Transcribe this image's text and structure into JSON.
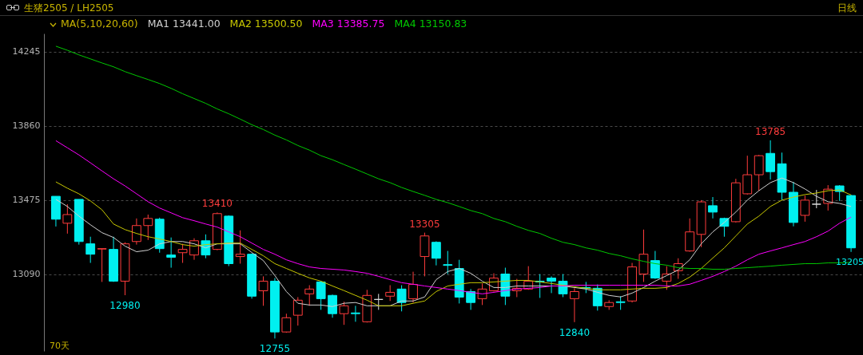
{
  "chart_data": {
    "type": "candlestick",
    "title": "生猪2505 / LH2505",
    "subtitle": "日线",
    "legend_title": "MA(5,10,20,60)",
    "legend": "top left",
    "grid": "y",
    "annotations": [
      {
        "text": "13410",
        "y": 13410
      },
      {
        "text": "12980",
        "y": 12980
      },
      {
        "text": "12755",
        "y": 12755
      },
      {
        "text": "13305",
        "y": 13305
      },
      {
        "text": "12840",
        "y": 12840
      },
      {
        "text": "13785",
        "y": 13785
      },
      {
        "text": "13205",
        "y": 13205
      },
      "70天"
    ],
    "ylim": [
      12690,
      14340
    ],
    "yticks": [
      13090,
      13475,
      13860,
      14245
    ],
    "categories": [
      null,
      null,
      null,
      null,
      null,
      null,
      null,
      null,
      null,
      null,
      null,
      null,
      null,
      null,
      null,
      null,
      null,
      null,
      null,
      null,
      null,
      null,
      null,
      null,
      null,
      null,
      null,
      null,
      null,
      null,
      null,
      null,
      null,
      null,
      null,
      null,
      null,
      null,
      null,
      null,
      null,
      null,
      null,
      null,
      null,
      null,
      null,
      null,
      null,
      null,
      null,
      null,
      null,
      null,
      null,
      null,
      null,
      null,
      null,
      null,
      null,
      null,
      null,
      null,
      null,
      null,
      null,
      null,
      null,
      null
    ],
    "ohlc": [
      [
        13494,
        13494,
        13337,
        13375
      ],
      [
        13354,
        13453,
        13300,
        13399
      ],
      [
        13478,
        13478,
        13243,
        13259
      ],
      [
        13247,
        13284,
        13148,
        13193
      ],
      [
        13220,
        13222,
        13049,
        13222
      ],
      [
        13218,
        13284,
        13049,
        13053
      ],
      [
        13053,
        13255,
        12980,
        13247
      ],
      [
        13259,
        13379,
        13243,
        13342
      ],
      [
        13342,
        13399,
        13267,
        13379
      ],
      [
        13375,
        13383,
        13201,
        13222
      ],
      [
        13189,
        13280,
        13123,
        13177
      ],
      [
        13201,
        13247,
        13148,
        13218
      ],
      [
        13189,
        13276,
        13164,
        13263
      ],
      [
        13263,
        13296,
        13172,
        13189
      ],
      [
        13218,
        13410,
        13214,
        13404
      ],
      [
        13391,
        13395,
        13131,
        13144
      ],
      [
        13181,
        13317,
        13144,
        13193
      ],
      [
        13193,
        13197,
        12962,
        12975
      ],
      [
        13003,
        13078,
        12925,
        13053
      ],
      [
        13053,
        13069,
        12755,
        12789
      ],
      [
        12789,
        12884,
        12785,
        12863
      ],
      [
        12876,
        12970,
        12822,
        12954
      ],
      [
        12987,
        13032,
        12925,
        13012
      ],
      [
        13049,
        13053,
        12904,
        12962
      ],
      [
        12979,
        12983,
        12863,
        12884
      ],
      [
        12884,
        12946,
        12826,
        12925
      ],
      [
        12888,
        12925,
        12842,
        12884
      ],
      [
        12842,
        13008,
        12838,
        12979
      ],
      [
        12958,
        12987,
        12904,
        12958
      ],
      [
        12975,
        13032,
        12950,
        12995
      ],
      [
        13012,
        13032,
        12896,
        12942
      ],
      [
        12962,
        13102,
        12942,
        13036
      ],
      [
        13181,
        13305,
        13078,
        13288
      ],
      [
        13255,
        13260,
        13135,
        13172
      ],
      [
        13139,
        13210,
        13090,
        13135
      ],
      [
        13119,
        13164,
        12937,
        12970
      ],
      [
        12999,
        13012,
        12904,
        12942
      ],
      [
        12962,
        13041,
        12929,
        13012
      ],
      [
        13003,
        13094,
        12999,
        13069
      ],
      [
        13090,
        13123,
        12929,
        12975
      ],
      [
        13003,
        13065,
        12970,
        13016
      ],
      [
        13012,
        13131,
        13008,
        13053
      ],
      [
        13053,
        13090,
        12966,
        13049
      ],
      [
        13069,
        13078,
        12991,
        13053
      ],
      [
        13053,
        13090,
        12970,
        12987
      ],
      [
        12962,
        13016,
        12840,
        12999
      ],
      [
        13020,
        13049,
        12991,
        13016
      ],
      [
        13016,
        13036,
        12900,
        12925
      ],
      [
        12921,
        12954,
        12904,
        12942
      ],
      [
        12946,
        12975,
        12904,
        12942
      ],
      [
        12950,
        13148,
        12942,
        13127
      ],
      [
        13090,
        13321,
        13049,
        13193
      ],
      [
        13160,
        13210,
        13065,
        13069
      ],
      [
        13053,
        13131,
        13008,
        13090
      ],
      [
        13107,
        13172,
        13065,
        13144
      ],
      [
        13210,
        13379,
        13206,
        13309
      ],
      [
        13296,
        13474,
        13230,
        13465
      ],
      [
        13445,
        13490,
        13379,
        13412
      ],
      [
        13379,
        13383,
        13284,
        13338
      ],
      [
        13362,
        13585,
        13358,
        13564
      ],
      [
        13507,
        13705,
        13503,
        13606
      ],
      [
        13606,
        13709,
        13523,
        13705
      ],
      [
        13717,
        13785,
        13581,
        13622
      ],
      [
        13663,
        13721,
        13474,
        13515
      ],
      [
        13515,
        13569,
        13338,
        13358
      ],
      [
        13395,
        13498,
        13362,
        13474
      ],
      [
        13453,
        13527,
        13432,
        13453
      ],
      [
        13457,
        13552,
        13420,
        13531
      ],
      [
        13548,
        13552,
        13470,
        13519
      ],
      [
        13498,
        13502,
        13205,
        13226
      ]
    ],
    "series": [
      {
        "name": "MA1 13441.00",
        "type": "line",
        "color": "#d0d0d0",
        "values": [
          13478,
          13441,
          13391,
          13346,
          13305,
          13280,
          13235,
          13206,
          13214,
          13247,
          13259,
          13259,
          13247,
          13226,
          13247,
          13247,
          13247,
          13202,
          13160,
          13082,
          12999,
          12938,
          12929,
          12929,
          12921,
          12938,
          12942,
          12925,
          12925,
          12925,
          12950,
          12950,
          12971,
          13061,
          13103,
          13119,
          13094,
          13053,
          13020,
          13020,
          13028,
          13028,
          13028,
          13028,
          13028,
          13020,
          13012,
          12995,
          12979,
          12971,
          12991,
          13020,
          13053,
          13082,
          13111,
          13164,
          13247,
          13309,
          13358,
          13412,
          13474,
          13523,
          13565,
          13589,
          13565,
          13532,
          13494,
          13466,
          13457,
          13441
        ]
      },
      {
        "name": "MA2 13500.50",
        "type": "line",
        "color": "#c8c800",
        "values": [
          13569,
          13536,
          13507,
          13470,
          13424,
          13350,
          13321,
          13301,
          13284,
          13272,
          13259,
          13243,
          13235,
          13243,
          13247,
          13251,
          13251,
          13218,
          13185,
          13144,
          13119,
          13094,
          13070,
          13053,
          13028,
          13004,
          12979,
          12954,
          12925,
          12925,
          12925,
          12938,
          12950,
          12999,
          13028,
          13037,
          13045,
          13045,
          13049,
          13053,
          13057,
          13057,
          13049,
          13041,
          13032,
          13024,
          13016,
          13008,
          13008,
          13008,
          13012,
          13016,
          13016,
          13020,
          13041,
          13074,
          13119,
          13173,
          13226,
          13288,
          13350,
          13391,
          13441,
          13474,
          13490,
          13503,
          13511,
          13523,
          13527,
          13501
        ]
      },
      {
        "name": "MA3 13385.75",
        "type": "line",
        "color": "#ff00ff",
        "values": [
          13783,
          13746,
          13709,
          13668,
          13626,
          13585,
          13548,
          13507,
          13466,
          13433,
          13408,
          13383,
          13367,
          13350,
          13334,
          13309,
          13284,
          13251,
          13218,
          13193,
          13164,
          13144,
          13127,
          13119,
          13115,
          13111,
          13103,
          13094,
          13078,
          13061,
          13045,
          13037,
          13028,
          13020,
          13012,
          13004,
          12995,
          12987,
          12995,
          13004,
          13012,
          13016,
          13020,
          13028,
          13028,
          13032,
          13032,
          13032,
          13032,
          13032,
          13032,
          13032,
          13032,
          13028,
          13028,
          13037,
          13057,
          13078,
          13103,
          13131,
          13164,
          13193,
          13210,
          13226,
          13243,
          13259,
          13284,
          13313,
          13354,
          13386
        ]
      },
      {
        "name": "MA4 13150.83",
        "type": "line",
        "color": "#00c800",
        "values": [
          14274,
          14253,
          14229,
          14208,
          14187,
          14167,
          14142,
          14121,
          14101,
          14080,
          14055,
          14027,
          14002,
          13977,
          13948,
          13923,
          13895,
          13866,
          13841,
          13812,
          13787,
          13758,
          13734,
          13705,
          13684,
          13659,
          13635,
          13610,
          13585,
          13565,
          13540,
          13519,
          13499,
          13478,
          13461,
          13441,
          13420,
          13404,
          13379,
          13362,
          13338,
          13317,
          13301,
          13276,
          13255,
          13243,
          13226,
          13214,
          13197,
          13185,
          13169,
          13156,
          13144,
          13136,
          13123,
          13119,
          13119,
          13115,
          13115,
          13119,
          13123,
          13127,
          13131,
          13136,
          13140,
          13144,
          13144,
          13148,
          13148,
          13151
        ]
      }
    ]
  }
}
